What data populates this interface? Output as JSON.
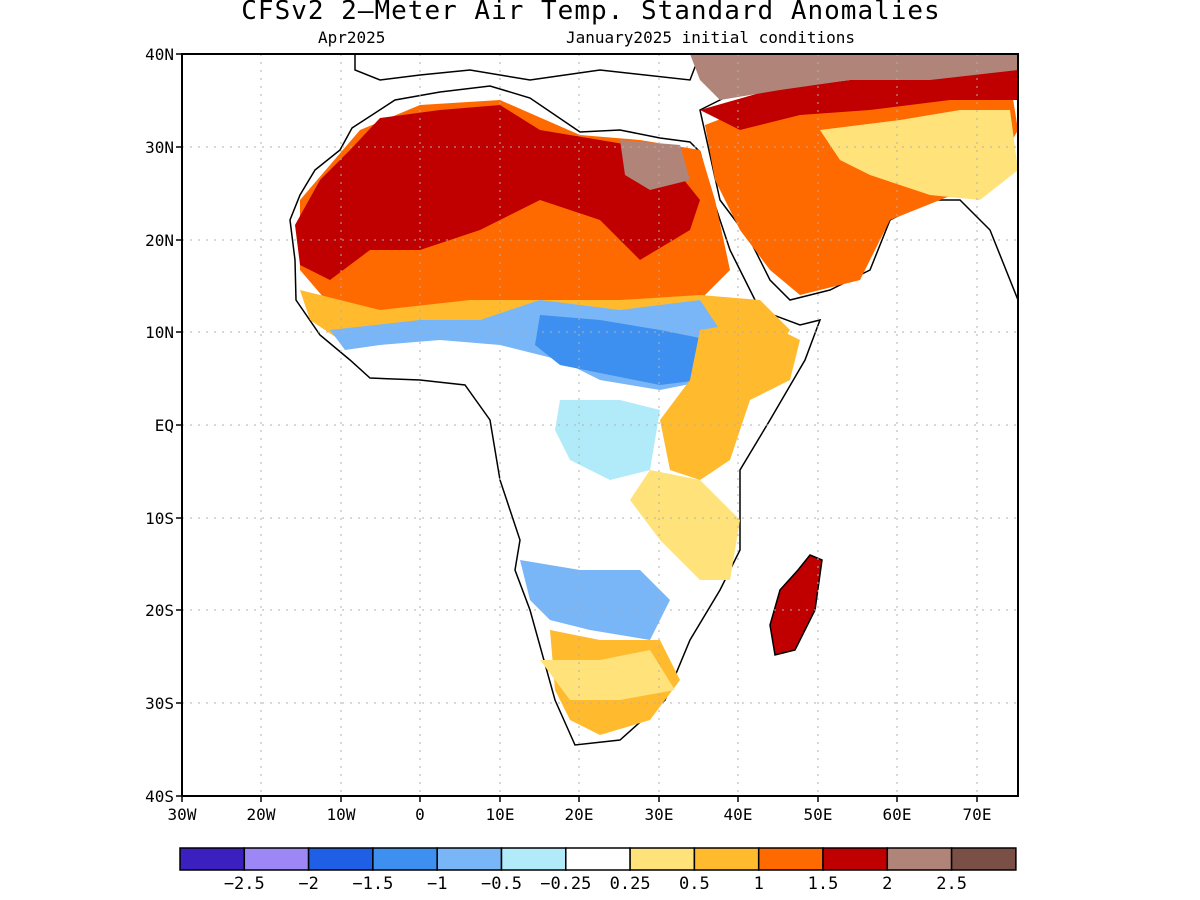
{
  "title": "CFSv2 2–Meter Air Temp. Standard Anomalies",
  "subtitle_left": "Apr2025",
  "subtitle_right": "January2025 initial conditions",
  "axes": {
    "lat_ticks": [
      "40N",
      "30N",
      "20N",
      "10N",
      "EQ",
      "10S",
      "20S",
      "30S",
      "40S"
    ],
    "lon_ticks": [
      "30W",
      "20W",
      "10W",
      "0",
      "10E",
      "20E",
      "30E",
      "40E",
      "50E",
      "60E",
      "70E"
    ]
  },
  "colorbar": {
    "colors": [
      "#3b1fbf",
      "#9d86f5",
      "#1e5fe6",
      "#3d8ff0",
      "#78b6f8",
      "#b1ebf9",
      "#ffffff",
      "#ffe27a",
      "#ffba2e",
      "#ff6a00",
      "#c00000",
      "#b08478",
      "#7a4f45"
    ],
    "labels": [
      "−2.5",
      "−2",
      "−1.5",
      "−1",
      "−0.5",
      "−0.25",
      "0.25",
      "0.5",
      "1",
      "1.5",
      "2",
      "2.5"
    ]
  },
  "colors": {
    "land_outline": "#000000",
    "grid": "#b0b0b0"
  }
}
